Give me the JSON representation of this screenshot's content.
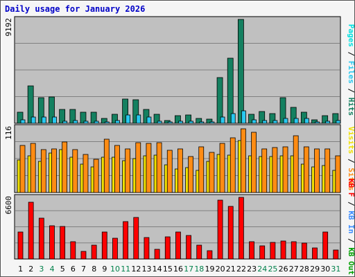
{
  "title": "Daily usage for January 2026",
  "colors": {
    "hits": "#148060",
    "files": "#28c8f0",
    "pages": "#00e0e0",
    "visits": "#f0e000",
    "sites": "#ff8c14",
    "kbf": "#ff0000",
    "kbin": "#3c8cff",
    "kbout": "#00a000",
    "weekday": "#000000",
    "weekend": "#00804a",
    "panel": "#c0c0c0",
    "grid": "#808080"
  },
  "chart_data": [
    {
      "type": "bar",
      "panel": "top",
      "max_label": "9192",
      "ylim": [
        0,
        9192
      ],
      "grid": true,
      "legend_placement": "right",
      "legend": [
        {
          "text": "Pages",
          "color_key": "pages"
        },
        {
          "text": "Files",
          "color_key": "files"
        },
        {
          "text": "Hits",
          "color_key": "hits"
        }
      ],
      "categories": [
        "1",
        "2",
        "3",
        "4",
        "5",
        "6",
        "7",
        "8",
        "9",
        "10",
        "11",
        "12",
        "13",
        "14",
        "15",
        "16",
        "17",
        "18",
        "19",
        "20",
        "21",
        "22",
        "23",
        "24",
        "25",
        "26",
        "27",
        "28",
        "29",
        "30",
        "31"
      ],
      "series": [
        {
          "name": "Hits",
          "color_key": "hits",
          "values": [
            1000,
            3300,
            2250,
            2350,
            1200,
            1250,
            950,
            950,
            450,
            800,
            2150,
            2100,
            1250,
            800,
            250,
            700,
            750,
            400,
            350,
            4050,
            5750,
            9192,
            800,
            1050,
            850,
            2250,
            1400,
            950,
            300,
            650,
            850
          ]
        },
        {
          "name": "Files",
          "color_key": "files",
          "values": [
            300,
            550,
            550,
            550,
            200,
            250,
            200,
            200,
            150,
            250,
            750,
            750,
            550,
            200,
            100,
            200,
            200,
            150,
            150,
            550,
            850,
            1100,
            300,
            250,
            250,
            400,
            400,
            450,
            100,
            200,
            250
          ]
        }
      ]
    },
    {
      "type": "bar",
      "panel": "middle",
      "max_label": "116",
      "ylim": [
        0,
        116
      ],
      "grid": true,
      "legend_placement": "right",
      "legend": [
        {
          "text": "Visits",
          "color_key": "visits"
        },
        {
          "text": "Sites",
          "color_key": "sites"
        }
      ],
      "categories": [
        "1",
        "2",
        "3",
        "4",
        "5",
        "6",
        "7",
        "8",
        "9",
        "10",
        "11",
        "12",
        "13",
        "14",
        "15",
        "16",
        "17",
        "18",
        "19",
        "20",
        "21",
        "22",
        "23",
        "24",
        "25",
        "26",
        "27",
        "28",
        "29",
        "30",
        "31"
      ],
      "series": [
        {
          "name": "Visits",
          "color_key": "visits",
          "values": [
            58,
            65,
            56,
            70,
            77,
            63,
            50,
            46,
            63,
            63,
            57,
            61,
            66,
            67,
            49,
            42,
            44,
            39,
            56,
            68,
            67,
            92,
            66,
            64,
            64,
            66,
            66,
            50,
            46,
            48,
            40
          ]
        },
        {
          "name": "Sites",
          "color_key": "sites",
          "values": [
            84,
            88,
            76,
            78,
            90,
            76,
            68,
            59,
            95,
            84,
            78,
            89,
            88,
            89,
            75,
            78,
            64,
            82,
            72,
            88,
            98,
            114,
            107,
            78,
            80,
            82,
            101,
            82,
            78,
            78,
            66
          ]
        }
      ]
    },
    {
      "type": "bar",
      "panel": "bottom",
      "max_label": "6600",
      "ylim": [
        0,
        6600
      ],
      "grid": true,
      "legend_placement": "right",
      "legend": [
        {
          "text": "KB F",
          "color_key": "kbf"
        },
        {
          "text": "KB In",
          "color_key": "kbin"
        },
        {
          "text": "KB Out",
          "color_key": "kbout"
        }
      ],
      "categories": [
        "1",
        "2",
        "3",
        "4",
        "5",
        "6",
        "7",
        "8",
        "9",
        "10",
        "11",
        "12",
        "13",
        "14",
        "15",
        "16",
        "17",
        "18",
        "19",
        "20",
        "21",
        "22",
        "23",
        "24",
        "25",
        "26",
        "27",
        "28",
        "29",
        "30",
        "31"
      ],
      "series": [
        {
          "name": "KB F",
          "color_key": "kbf",
          "values": [
            2900,
            6100,
            4400,
            3550,
            3500,
            1850,
            850,
            1500,
            2900,
            2250,
            4000,
            4450,
            2300,
            1050,
            2400,
            2900,
            2500,
            1450,
            900,
            6300,
            5600,
            6600,
            1850,
            1400,
            1800,
            1950,
            1850,
            1700,
            1150,
            2900,
            1000
          ]
        }
      ]
    }
  ],
  "days": [
    {
      "label": "1",
      "weekend": false
    },
    {
      "label": "2",
      "weekend": false
    },
    {
      "label": "3",
      "weekend": true
    },
    {
      "label": "4",
      "weekend": true
    },
    {
      "label": "5",
      "weekend": false
    },
    {
      "label": "6",
      "weekend": false
    },
    {
      "label": "7",
      "weekend": false
    },
    {
      "label": "8",
      "weekend": false
    },
    {
      "label": "9",
      "weekend": false
    },
    {
      "label": "10",
      "weekend": true
    },
    {
      "label": "11",
      "weekend": true
    },
    {
      "label": "12",
      "weekend": false
    },
    {
      "label": "13",
      "weekend": false
    },
    {
      "label": "14",
      "weekend": false
    },
    {
      "label": "15",
      "weekend": false
    },
    {
      "label": "16",
      "weekend": false
    },
    {
      "label": "17",
      "weekend": true
    },
    {
      "label": "18",
      "weekend": true
    },
    {
      "label": "19",
      "weekend": false
    },
    {
      "label": "20",
      "weekend": false
    },
    {
      "label": "21",
      "weekend": false
    },
    {
      "label": "22",
      "weekend": false
    },
    {
      "label": "23",
      "weekend": false
    },
    {
      "label": "24",
      "weekend": true
    },
    {
      "label": "25",
      "weekend": true
    },
    {
      "label": "26",
      "weekend": false
    },
    {
      "label": "27",
      "weekend": false
    },
    {
      "label": "28",
      "weekend": false
    },
    {
      "label": "29",
      "weekend": false
    },
    {
      "label": "30",
      "weekend": false
    },
    {
      "label": "31",
      "weekend": true
    }
  ]
}
